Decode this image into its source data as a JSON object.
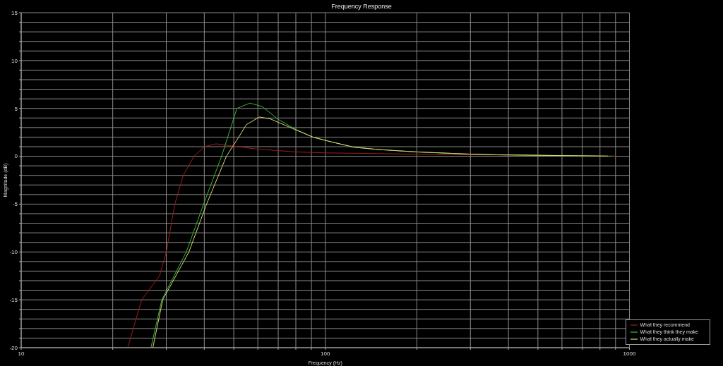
{
  "chart_data": {
    "type": "line",
    "title": "Frequency Response",
    "xlabel": "Frequency (Hz)",
    "ylabel": "Magnitude (dB)",
    "log": "x",
    "grid": true,
    "legend": "bottom right",
    "marker": "none",
    "line_style": "solid",
    "xlim": [
      10,
      1000
    ],
    "xticks": [
      10,
      {
        "value": 20,
        "label": null
      },
      {
        "value": 30,
        "label": null
      },
      {
        "value": 40,
        "label": null
      },
      {
        "value": 50,
        "label": null
      },
      {
        "value": 60,
        "label": null
      },
      {
        "value": 70,
        "label": null
      },
      {
        "value": 80,
        "label": null
      },
      {
        "value": 90,
        "label": null
      },
      100,
      {
        "value": 200,
        "label": null
      },
      {
        "value": 300,
        "label": null
      },
      {
        "value": 400,
        "label": null
      },
      {
        "value": 500,
        "label": null
      },
      {
        "value": 600,
        "label": null
      },
      {
        "value": 700,
        "label": null
      },
      {
        "value": 800,
        "label": null
      },
      {
        "value": 900,
        "label": null
      },
      1000
    ],
    "ylim": [
      -20,
      15
    ],
    "yticks": [
      -20,
      {
        "value": -19,
        "label": null
      },
      {
        "value": -18,
        "label": null
      },
      {
        "value": -17,
        "label": null
      },
      {
        "value": -16,
        "label": null
      },
      -15,
      {
        "value": -14,
        "label": null
      },
      {
        "value": -13,
        "label": null
      },
      {
        "value": -12,
        "label": null
      },
      {
        "value": -11,
        "label": null
      },
      -10,
      {
        "value": -9,
        "label": null
      },
      {
        "value": -8,
        "label": null
      },
      {
        "value": -7,
        "label": null
      },
      {
        "value": -6,
        "label": null
      },
      -5,
      {
        "value": -4,
        "label": null
      },
      {
        "value": -3,
        "label": null
      },
      {
        "value": -2,
        "label": null
      },
      {
        "value": -1,
        "label": null
      },
      0,
      {
        "value": 1,
        "label": null
      },
      {
        "value": 2,
        "label": null
      },
      {
        "value": 3,
        "label": null
      },
      {
        "value": 4,
        "label": null
      },
      5,
      {
        "value": 6,
        "label": null
      },
      {
        "value": 7,
        "label": null
      },
      {
        "value": 8,
        "label": null
      },
      {
        "value": 9,
        "label": null
      },
      10,
      {
        "value": 11,
        "label": null
      },
      {
        "value": 12,
        "label": null
      },
      {
        "value": 13,
        "label": null
      },
      {
        "value": 14,
        "label": null
      },
      15
    ],
    "series": [
      {
        "name": "What they recommend",
        "color": "#a01c1c",
        "x": [
          22.4,
          24.9,
          28.5,
          30,
          32,
          34.1,
          37,
          40,
          43.7,
          50,
          60,
          80,
          100,
          150,
          200,
          300,
          500,
          700,
          900
        ],
        "values": [
          -20,
          -15,
          -12.5,
          -10,
          -5,
          -2,
          0,
          1.0,
          1.3,
          1.05,
          0.75,
          0.45,
          0.35,
          0.28,
          0.2,
          0.15,
          0.1,
          0.05,
          0.03
        ]
      },
      {
        "name": "What they think they make",
        "color": "#38b838",
        "x": [
          26.7,
          29,
          34.9,
          39.8,
          45.6,
          51.2,
          56.5,
          62,
          69.6,
          80,
          91,
          104.7,
          124,
          150,
          200,
          300,
          370,
          500,
          680,
          878
        ],
        "values": [
          -20,
          -15,
          -10,
          -5,
          0,
          5,
          5.55,
          5.2,
          3.9,
          2.8,
          2.0,
          1.5,
          0.95,
          0.7,
          0.45,
          0.22,
          0.15,
          0.1,
          0.05,
          0
        ]
      },
      {
        "name": "What they actually make",
        "color": "#d8d878",
        "x": [
          27.1,
          29.2,
          35.6,
          40.7,
          47.3,
          51.9,
          55,
          60.7,
          66,
          78,
          91,
          104.7,
          124,
          150,
          200,
          300,
          370,
          500,
          680,
          850
        ],
        "values": [
          -20,
          -15,
          -10,
          -5,
          0,
          2,
          3.3,
          4.1,
          3.9,
          2.9,
          2.0,
          1.5,
          0.95,
          0.7,
          0.45,
          0.22,
          0.15,
          0.1,
          0.05,
          0.02
        ]
      }
    ]
  }
}
